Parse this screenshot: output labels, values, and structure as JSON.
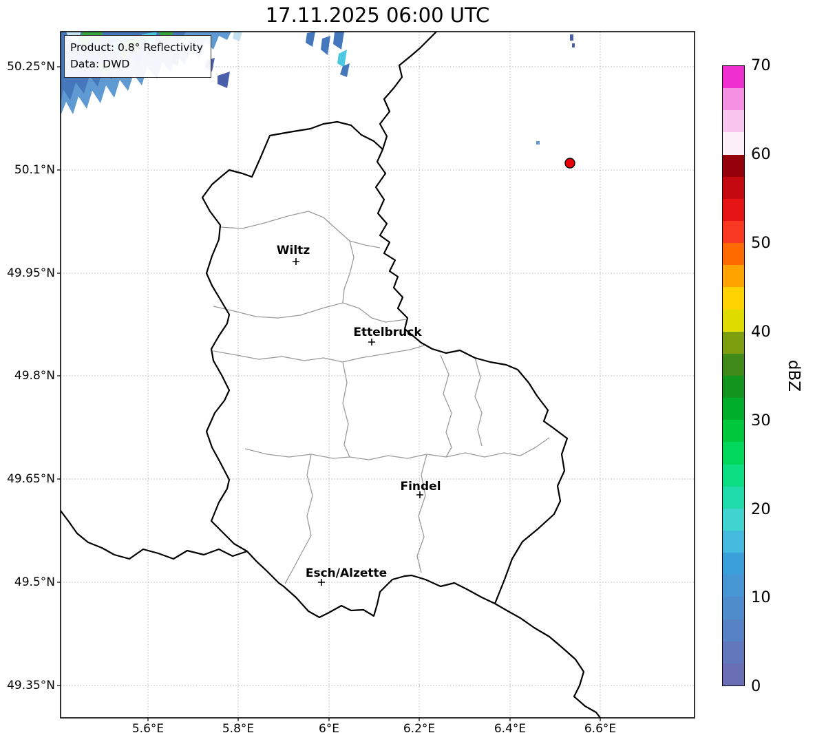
{
  "title": "17.11.2025 06:00 UTC",
  "info_box": {
    "line1": "Product: 0.8° Reflectivity",
    "line2": "Data: DWD"
  },
  "axes": {
    "lat_ticks": [
      "50.25°N",
      "50.1°N",
      "49.95°N",
      "49.8°N",
      "49.65°N",
      "49.5°N",
      "49.35°N"
    ],
    "lon_ticks": [
      "5.6°E",
      "5.8°E",
      "6°E",
      "6.2°E",
      "6.4°E",
      "6.6°E"
    ]
  },
  "map": {
    "cities": [
      {
        "name": "Wiltz"
      },
      {
        "name": "Ettelbruck"
      },
      {
        "name": "Findel"
      },
      {
        "name": "Esch/Alzette"
      }
    ]
  },
  "colorbar": {
    "label": "dBZ",
    "range": [
      0,
      70
    ],
    "ticks": [
      "70",
      "60",
      "50",
      "40",
      "30",
      "20",
      "10",
      "0"
    ],
    "colors_bottom_to_top": [
      "#6a6fb5",
      "#6178bc",
      "#5782c4",
      "#4e8ccb",
      "#4596d3",
      "#3ba0da",
      "#44bade",
      "#3fd4cf",
      "#20dcab",
      "#0cdf83",
      "#00d75b",
      "#00c83c",
      "#00ae2c",
      "#12961f",
      "#3f8a18",
      "#7e9e10",
      "#e0dc00",
      "#ffd300",
      "#ffa300",
      "#ff6a00",
      "#f93822",
      "#e61414",
      "#c40a10",
      "#94000a",
      "#fdeffa",
      "#f9c6ef",
      "#f591e2",
      "#ef2ed0"
    ]
  },
  "palette": {
    "echo_pale": "#c3e0f0",
    "echo_light": "#5f9ad2",
    "echo_mid": "#4577bd",
    "echo_dark": "#4a5fa9",
    "echo_cyan": "#4cc9e0",
    "echo_green": "#38a83e",
    "radar_red": "#e8000b",
    "canton_gray": "#9a9a9a",
    "grid_gray": "#b3b3b3"
  }
}
